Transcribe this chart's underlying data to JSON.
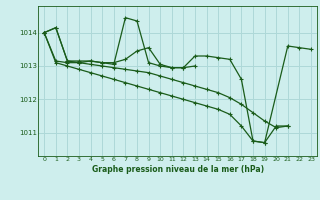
{
  "title": "Graphe pression niveau de la mer (hPa)",
  "bg_color": "#ceeeed",
  "grid_color": "#aed8d8",
  "line_color": "#1a5c1a",
  "xlim": [
    -0.5,
    23.5
  ],
  "ylim": [
    1010.3,
    1014.8
  ],
  "yticks": [
    1011,
    1012,
    1013,
    1014
  ],
  "xticks": [
    0,
    1,
    2,
    3,
    4,
    5,
    6,
    7,
    8,
    9,
    10,
    11,
    12,
    13,
    14,
    15,
    16,
    17,
    18,
    19,
    20,
    21,
    22,
    23
  ],
  "series": [
    {
      "x": [
        0,
        1,
        2,
        3,
        4,
        5,
        6,
        7,
        8,
        9,
        10,
        11,
        12,
        13,
        14,
        15,
        16,
        17,
        18,
        19,
        21,
        22,
        23
      ],
      "y": [
        1014.0,
        1014.15,
        1013.15,
        1013.1,
        1013.15,
        1013.1,
        1013.1,
        1013.2,
        1013.45,
        1013.55,
        1013.05,
        1012.95,
        1012.95,
        1013.3,
        1013.3,
        1013.25,
        1013.2,
        1012.6,
        1010.75,
        1010.7,
        1013.6,
        1013.55,
        1013.5
      ]
    },
    {
      "x": [
        0,
        1,
        2,
        3,
        4,
        5,
        6,
        7,
        8,
        9,
        10,
        11,
        12,
        13
      ],
      "y": [
        1014.0,
        1014.15,
        1013.15,
        1013.15,
        1013.15,
        1013.1,
        1013.05,
        1014.45,
        1014.35,
        1013.1,
        1013.0,
        1012.95,
        1012.95,
        1013.0
      ]
    },
    {
      "x": [
        0,
        1,
        2,
        3,
        4,
        5,
        6,
        7,
        8,
        9,
        10,
        11,
        12,
        13,
        14,
        15,
        16,
        17,
        18,
        19,
        20,
        21
      ],
      "y": [
        1014.0,
        1013.15,
        1013.1,
        1013.1,
        1013.05,
        1013.0,
        1012.95,
        1012.9,
        1012.85,
        1012.8,
        1012.7,
        1012.6,
        1012.5,
        1012.4,
        1012.3,
        1012.2,
        1012.05,
        1011.85,
        1011.6,
        1011.35,
        1011.15,
        1011.2
      ]
    },
    {
      "x": [
        0,
        1,
        2,
        3,
        4,
        5,
        6,
        7,
        8,
        9,
        10,
        11,
        12,
        13,
        14,
        15,
        16,
        17,
        18,
        19,
        20,
        21
      ],
      "y": [
        1014.0,
        1013.1,
        1013.0,
        1012.9,
        1012.8,
        1012.7,
        1012.6,
        1012.5,
        1012.4,
        1012.3,
        1012.2,
        1012.1,
        1012.0,
        1011.9,
        1011.8,
        1011.7,
        1011.55,
        1011.2,
        1010.75,
        1010.7,
        1011.2,
        1011.2
      ]
    }
  ]
}
